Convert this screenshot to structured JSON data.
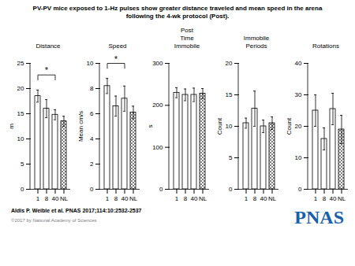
{
  "title": "PV-PV mice exposed to 1-Hz pulses show greater distance traveled and mean speed in the arena\nfollowing the 4-wk protocol (Post).",
  "annotations": [
    {
      "text": "Aldis P. Weible et al. PNAS 2017;114:10:2532-2537"
    },
    {
      "text": "©2017 by National Academy of Sciences",
      "color": "gray"
    },
    {
      "text": "PNAS",
      "color": "#1a5fa8"
    }
  ],
  "chart_data": [
    {
      "type": "bar",
      "title": "Distance",
      "ylabel": "m",
      "categories": [
        "1",
        "8",
        "40",
        "NL"
      ],
      "values": [
        18.5,
        16.0,
        14.8,
        13.5
      ],
      "errors": [
        1.2,
        1.8,
        1.0,
        1.0
      ],
      "color": "white",
      "ylim": [
        0,
        25
      ],
      "yticks": [
        0,
        5,
        10,
        15,
        20,
        25
      ],
      "grid": false,
      "annotations": [
        {
          "text": "*",
          "from": "1",
          "to": "40"
        }
      ]
    },
    {
      "type": "bar",
      "title": "Speed",
      "ylabel": "Mean cm/s",
      "categories": [
        "1",
        "8",
        "40",
        "NL"
      ],
      "values": [
        8.2,
        6.6,
        7.2,
        6.1
      ],
      "errors": [
        0.6,
        0.8,
        1.0,
        0.5
      ],
      "color": "white",
      "ylim": [
        0,
        10
      ],
      "yticks": [
        0,
        2,
        4,
        6,
        8,
        10
      ],
      "grid": false,
      "annotations": [
        {
          "text": "*",
          "from": "1",
          "to": "40"
        }
      ]
    },
    {
      "type": "bar",
      "title": "Post\nTime\nImmobile",
      "ylabel": "s",
      "categories": [
        "1",
        "8",
        "40",
        "NL"
      ],
      "values": [
        230,
        225,
        225,
        228
      ],
      "errors": [
        12,
        14,
        16,
        12
      ],
      "color": "white",
      "ylim": [
        0,
        300
      ],
      "yticks": [
        0,
        100,
        200,
        300
      ],
      "grid": false
    },
    {
      "type": "bar",
      "title": "Immobile\nPeriods",
      "ylabel": "Count",
      "categories": [
        "1",
        "8",
        "40",
        "NL"
      ],
      "values": [
        10.5,
        12.8,
        10.0,
        10.5
      ],
      "errors": [
        0.8,
        2.8,
        1.0,
        1.0
      ],
      "color": "white",
      "ylim": [
        0,
        20
      ],
      "yticks": [
        0,
        5,
        10,
        15,
        20
      ],
      "grid": false
    },
    {
      "type": "bar",
      "title": "Rotations",
      "ylabel": "Count",
      "categories": [
        "1",
        "8",
        "40",
        "NL"
      ],
      "values": [
        25.0,
        16.0,
        25.5,
        19.0
      ],
      "errors": [
        5.0,
        3.5,
        5.0,
        4.5
      ],
      "color": "white",
      "ylim": [
        0,
        40
      ],
      "yticks": [
        0,
        10,
        20,
        30,
        40
      ],
      "grid": false
    }
  ]
}
